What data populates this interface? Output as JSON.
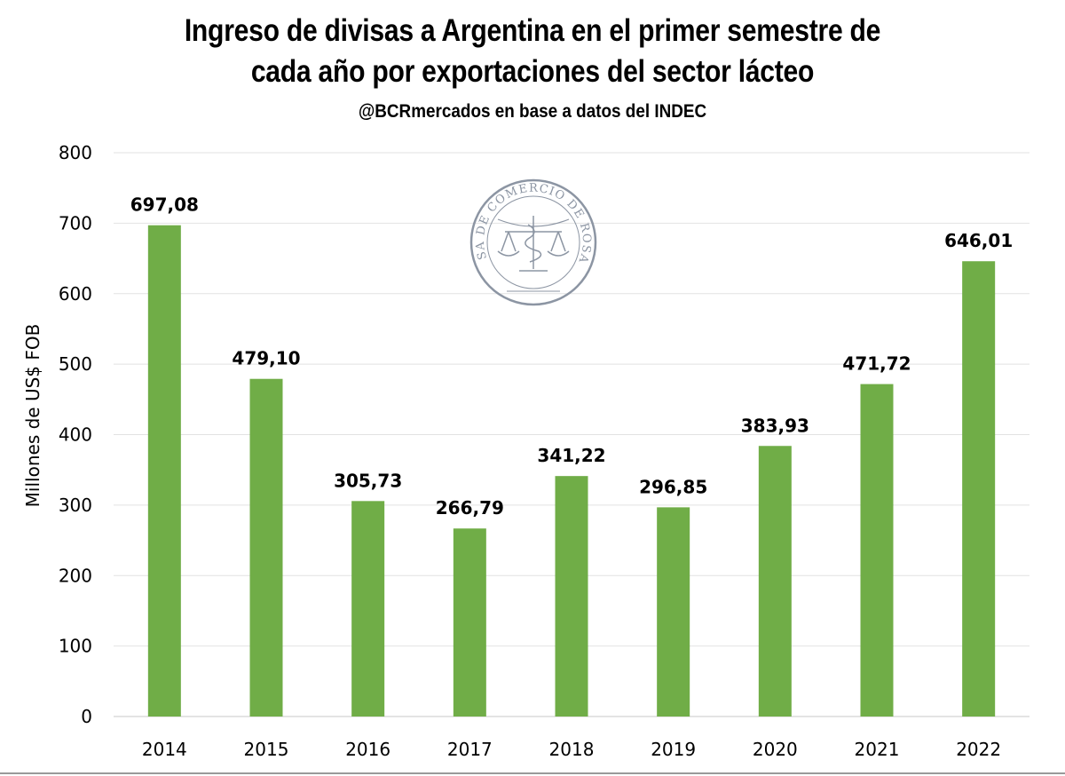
{
  "chart_data": {
    "type": "bar",
    "title_lines": [
      "Ingreso de divisas a Argentina en el primer semestre de",
      "cada año por exportaciones del sector lácteo"
    ],
    "subtitle": "@BCRmercados en base a datos del INDEC",
    "ylabel": "Millones de US$ FOB",
    "xlabel": "",
    "ylim": [
      0,
      800
    ],
    "yticks": [
      0,
      100,
      200,
      300,
      400,
      500,
      600,
      700,
      800
    ],
    "grid": true,
    "categories": [
      "2014",
      "2015",
      "2016",
      "2017",
      "2018",
      "2019",
      "2020",
      "2021",
      "2022"
    ],
    "values": [
      697.08,
      479.1,
      305.73,
      266.79,
      341.22,
      296.85,
      383.93,
      471.72,
      646.01
    ],
    "value_labels": [
      "697,08",
      "479,10",
      "305,73",
      "266,79",
      "341,22",
      "296,85",
      "383,93",
      "471,72",
      "646,01"
    ],
    "bar_color": "#70AD47",
    "logo": {
      "text": "BOLSA DE COMERCIO DE ROSARIO",
      "color": "#8c95a3"
    }
  }
}
